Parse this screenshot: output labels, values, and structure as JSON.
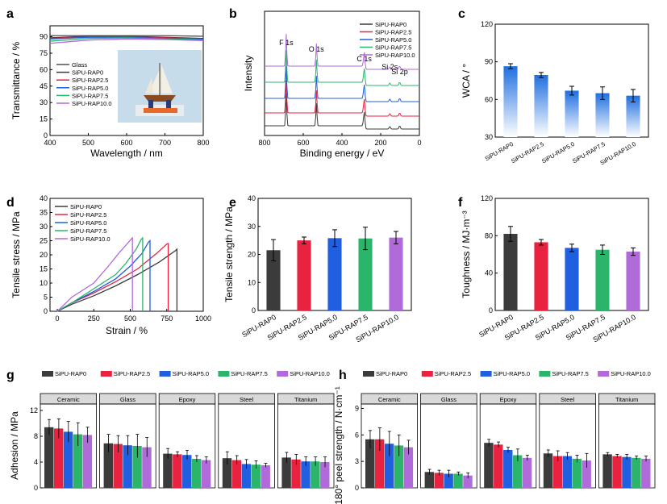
{
  "series_names": [
    "SiPU-RAP0",
    "SiPU-RAP2.5",
    "SiPU-RAP5.0",
    "SiPU-RAP7.5",
    "SiPU-RAP10.0"
  ],
  "colors": {
    "s0": "#3b3b3b",
    "s1": "#e8223f",
    "s2": "#1f5fe0",
    "s3": "#2bb56a",
    "s4": "#b06ad9",
    "glass": "#505050",
    "glass_region": "#f2f2f2"
  },
  "panels": {
    "a": "a",
    "b": "b",
    "c": "c",
    "d": "d",
    "e": "e",
    "f": "f",
    "g": "g",
    "h": "h"
  },
  "chart_data": [
    {
      "id": "a",
      "type": "line",
      "xlabel": "Wavelength / nm",
      "ylabel": "Transmittance / %",
      "xlim": [
        400,
        800
      ],
      "ylim": [
        0,
        100
      ],
      "xticks": [
        "400",
        "500",
        "600",
        "700",
        "800"
      ],
      "yticks": [
        "0",
        "15",
        "30",
        "45",
        "60",
        "75",
        "90"
      ],
      "legend": [
        "Glass",
        "SiPU-RAP0",
        "SiPU-RAP2.5",
        "SiPU-RAP5.0",
        "SiPU-RAP7.5",
        "SiPU-RAP10.0"
      ],
      "series": [
        {
          "name": "Glass",
          "x": [
            400,
            500,
            600,
            700,
            800
          ],
          "values": [
            91,
            91,
            91,
            91,
            90.5
          ]
        },
        {
          "name": "SiPU-RAP0",
          "x": [
            400,
            500,
            600,
            700,
            800
          ],
          "values": [
            89,
            90.5,
            90.5,
            89.5,
            88.5
          ]
        },
        {
          "name": "SiPU-RAP2.5",
          "x": [
            400,
            500,
            600,
            700,
            800
          ],
          "values": [
            88.5,
            90,
            90,
            89,
            88
          ]
        },
        {
          "name": "SiPU-RAP5.0",
          "x": [
            400,
            500,
            600,
            700,
            800
          ],
          "values": [
            88,
            89.5,
            89.5,
            88.5,
            88
          ]
        },
        {
          "name": "SiPU-RAP7.5",
          "x": [
            400,
            500,
            600,
            700,
            800
          ],
          "values": [
            86,
            88.5,
            89,
            88,
            87
          ]
        },
        {
          "name": "SiPU-RAP10.0",
          "x": [
            400,
            500,
            600,
            700,
            800
          ],
          "values": [
            84,
            87,
            88,
            87.5,
            86.5
          ]
        }
      ]
    },
    {
      "id": "b",
      "type": "line",
      "xlabel": "Binding energy / eV",
      "ylabel": "Intensity",
      "xlim": [
        800,
        0
      ],
      "xticks": [
        "800",
        "600",
        "400",
        "200",
        "0"
      ],
      "legend": [
        "SiPU-RAP0",
        "SiPU-RAP2.5",
        "SiPU-RAP5.0",
        "SiPU-RAP7.5",
        "SiPU-RAP10.0"
      ],
      "peaks": [
        {
          "label": "F 1s",
          "x": 688
        },
        {
          "label": "O 1s",
          "x": 532
        },
        {
          "label": "C 1s",
          "x": 285
        },
        {
          "label": "Si 2s",
          "x": 153
        },
        {
          "label": "Si 2p",
          "x": 102
        }
      ]
    },
    {
      "id": "c",
      "type": "bar",
      "ylabel": "WCA / °",
      "categories": [
        "SiPU-RAP0",
        "SiPU-RAP2.5",
        "SiPU-RAP5.0",
        "SiPU-RAP7.5",
        "SiPU-RAP10.0"
      ],
      "values": [
        86.5,
        79.5,
        67,
        65,
        63
      ],
      "errors": [
        2,
        2,
        3.5,
        5,
        5
      ],
      "ylim": [
        30,
        120
      ],
      "yticks": [
        "30",
        "60",
        "90",
        "120"
      ]
    },
    {
      "id": "d",
      "type": "line",
      "xlabel": "Strain / %",
      "ylabel": "Tensile stress / MPa",
      "xlim": [
        -50,
        1000
      ],
      "ylim": [
        0,
        40
      ],
      "xticks": [
        "0",
        "250",
        "500",
        "750",
        "1000"
      ],
      "yticks": [
        "0",
        "5",
        "10",
        "15",
        "20",
        "25",
        "30",
        "35",
        "40"
      ],
      "legend": [
        "SiPU-RAP0",
        "SiPU-RAP2.5",
        "SiPU-RAP5.0",
        "SiPU-RAP7.5",
        "SiPU-RAP10.0"
      ],
      "series": [
        {
          "name": "SiPU-RAP0",
          "x": [
            0,
            100,
            250,
            400,
            550,
            700,
            810,
            820,
            820
          ],
          "values": [
            0,
            2.5,
            5.5,
            9,
            13,
            17.5,
            21.5,
            22,
            0
          ]
        },
        {
          "name": "SiPU-RAP2.5",
          "x": [
            0,
            100,
            250,
            400,
            550,
            680,
            750,
            760,
            760
          ],
          "values": [
            0,
            3,
            6.5,
            10.5,
            15,
            20.5,
            23.8,
            24,
            0
          ]
        },
        {
          "name": "SiPU-RAP5.0",
          "x": [
            0,
            100,
            250,
            400,
            500,
            580,
            625,
            635,
            635
          ],
          "values": [
            0,
            3,
            7,
            11.5,
            16,
            20.5,
            24.5,
            25,
            0
          ]
        },
        {
          "name": "SiPU-RAP7.5",
          "x": [
            0,
            100,
            250,
            400,
            470,
            540,
            575,
            585,
            585
          ],
          "values": [
            0,
            3,
            8,
            13,
            17,
            22,
            25.5,
            26,
            0
          ]
        },
        {
          "name": "SiPU-RAP10.0",
          "x": [
            0,
            100,
            250,
            350,
            420,
            480,
            505,
            515,
            515
          ],
          "values": [
            0,
            5,
            10,
            16,
            20.5,
            24,
            25.5,
            26,
            0
          ]
        }
      ]
    },
    {
      "id": "e",
      "type": "bar",
      "ylabel": "Tensile strength / MPa",
      "categories": [
        "SiPU-RAP0",
        "SiPU-RAP2.5",
        "SiPU-RAP5.0",
        "SiPU-RAP7.5",
        "SiPU-RAP10.0"
      ],
      "values": [
        21.5,
        25,
        25.8,
        25.7,
        26
      ],
      "errors": [
        3.8,
        1.2,
        3,
        4,
        2.2
      ],
      "ylim": [
        0,
        40
      ],
      "yticks": [
        "0",
        "10",
        "20",
        "30",
        "40"
      ]
    },
    {
      "id": "f",
      "type": "bar",
      "ylabel": "Toughness / MJ·m⁻³",
      "categories": [
        "SiPU-RAP0",
        "SiPU-RAP2.5",
        "SiPU-RAP5.0",
        "SiPU-RAP7.5",
        "SiPU-RAP10.0"
      ],
      "values": [
        82,
        73,
        67,
        65,
        63
      ],
      "errors": [
        8,
        3,
        4,
        5,
        4
      ],
      "ylim": [
        0,
        120
      ],
      "yticks": [
        "0",
        "40",
        "80",
        "120"
      ]
    },
    {
      "id": "g",
      "type": "bar",
      "ylabel": "Adhesion / MPa",
      "facets": [
        "Ceramic",
        "Glass",
        "Epoxy",
        "Steel",
        "Titanium"
      ],
      "ylim": [
        0,
        13
      ],
      "yticks": [
        "0",
        "4",
        "8",
        "12"
      ],
      "series": [
        {
          "name": "SiPU-RAP0",
          "values": [
            9.4,
            6.9,
            5.3,
            4.6,
            4.7
          ],
          "errors": [
            1.2,
            1.4,
            0.8,
            1,
            0.8
          ]
        },
        {
          "name": "SiPU-RAP2.5",
          "values": [
            9.2,
            6.8,
            5.2,
            4.3,
            4.4
          ],
          "errors": [
            1.5,
            1.3,
            0.4,
            0.7,
            0.8
          ]
        },
        {
          "name": "SiPU-RAP5.0",
          "values": [
            8.7,
            6.6,
            5.1,
            3.7,
            4.1
          ],
          "errors": [
            1.6,
            1.5,
            0.7,
            0.7,
            0.7
          ]
        },
        {
          "name": "SiPU-RAP7.5",
          "values": [
            8.3,
            6.5,
            4.5,
            3.6,
            4.1
          ],
          "errors": [
            1.8,
            1.8,
            0.5,
            0.6,
            0.7
          ]
        },
        {
          "name": "SiPU-RAP10.0",
          "values": [
            8.2,
            6.3,
            4.3,
            3.5,
            4
          ],
          "errors": [
            1.2,
            1.5,
            0.5,
            0.3,
            0.8
          ]
        }
      ]
    },
    {
      "id": "h",
      "type": "bar",
      "ylabel": "180° peel strength / N·cm⁻¹",
      "facets": [
        "Ceramic",
        "Glass",
        "Epoxy",
        "Steel",
        "Titanium"
      ],
      "ylim": [
        0,
        9.5
      ],
      "yticks": [
        "0",
        "3",
        "6",
        "9"
      ],
      "series": [
        {
          "name": "SiPU-RAP0",
          "values": [
            5.5,
            1.8,
            5.1,
            3.9,
            3.8
          ],
          "errors": [
            1,
            0.3,
            0.4,
            0.4,
            0.2
          ]
        },
        {
          "name": "SiPU-RAP2.5",
          "values": [
            5.5,
            1.7,
            4.9,
            3.6,
            3.6
          ],
          "errors": [
            1.3,
            0.3,
            0.3,
            0.6,
            0.2
          ]
        },
        {
          "name": "SiPU-RAP5.0",
          "values": [
            5,
            1.6,
            4.3,
            3.6,
            3.5
          ],
          "errors": [
            1.4,
            0.4,
            0.3,
            0.4,
            0.3
          ]
        },
        {
          "name": "SiPU-RAP7.5",
          "values": [
            4.8,
            1.6,
            3.7,
            3.3,
            3.4
          ],
          "errors": [
            1.2,
            0.2,
            0.7,
            0.4,
            0.2
          ]
        },
        {
          "name": "SiPU-RAP10.0",
          "values": [
            4.6,
            1.4,
            3.4,
            3.1,
            3.3
          ],
          "errors": [
            0.8,
            0.3,
            0.3,
            0.8,
            0.3
          ]
        }
      ]
    }
  ]
}
